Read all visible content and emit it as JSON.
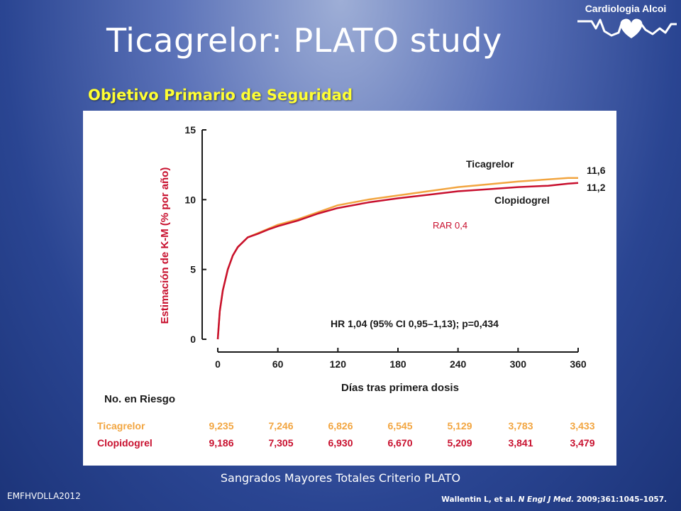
{
  "slide": {
    "title": "Ticagrelor: PLATO study",
    "subtitle": "Objetivo Primario de Seguridad",
    "caption": "Sangrados Mayores Totales Criterio PLATO",
    "footer_left": "EMFHVDLLA2012",
    "reference": {
      "authors": "Wallentin L, et al.",
      "journal": "N Engl J Med.",
      "details": "2009;361:1045–1057."
    },
    "logo": {
      "text": "Cardiologia Alcoi",
      "icon": "heart-icon"
    }
  },
  "chart_data": {
    "type": "line",
    "xlabel": "Días tras primera dosis",
    "ylabel": "Estimación de K-M (% por año)",
    "xlim": [
      0,
      360
    ],
    "ylim": [
      0,
      15
    ],
    "x_ticks": [
      "0",
      "60",
      "120",
      "180",
      "240",
      "300",
      "360"
    ],
    "y_ticks": [
      "0",
      "5",
      "10",
      "15"
    ],
    "series": [
      {
        "name": "Ticagrelor",
        "color": "#f2a540",
        "end_label": "11,6",
        "points": [
          [
            0,
            0
          ],
          [
            2,
            2.0
          ],
          [
            5,
            3.5
          ],
          [
            10,
            5.0
          ],
          [
            15,
            6.0
          ],
          [
            20,
            6.6
          ],
          [
            30,
            7.3
          ],
          [
            40,
            7.6
          ],
          [
            50,
            7.9
          ],
          [
            60,
            8.2
          ],
          [
            80,
            8.6
          ],
          [
            100,
            9.1
          ],
          [
            120,
            9.6
          ],
          [
            150,
            10.0
          ],
          [
            180,
            10.3
          ],
          [
            210,
            10.6
          ],
          [
            240,
            10.9
          ],
          [
            270,
            11.1
          ],
          [
            300,
            11.3
          ],
          [
            330,
            11.45
          ],
          [
            350,
            11.55
          ],
          [
            360,
            11.55
          ]
        ]
      },
      {
        "name": "Clopidogrel",
        "color": "#c8102e",
        "end_label": "11,2",
        "points": [
          [
            0,
            0
          ],
          [
            2,
            2.0
          ],
          [
            5,
            3.5
          ],
          [
            10,
            5.0
          ],
          [
            15,
            6.0
          ],
          [
            20,
            6.6
          ],
          [
            30,
            7.3
          ],
          [
            40,
            7.55
          ],
          [
            50,
            7.85
          ],
          [
            60,
            8.1
          ],
          [
            80,
            8.5
          ],
          [
            100,
            9.0
          ],
          [
            120,
            9.4
          ],
          [
            150,
            9.8
          ],
          [
            180,
            10.1
          ],
          [
            210,
            10.35
          ],
          [
            240,
            10.6
          ],
          [
            270,
            10.75
          ],
          [
            300,
            10.9
          ],
          [
            330,
            11.0
          ],
          [
            350,
            11.15
          ],
          [
            360,
            11.2
          ]
        ]
      }
    ],
    "annotations": {
      "rar": "RAR 0,4",
      "hr": "HR 1,04 (95% CI 0,95–1,13);  p=0,434"
    },
    "risk_table": {
      "header": "No. en Riesgo",
      "rows": [
        {
          "name": "Ticagrelor",
          "color": "#f2a540",
          "values": [
            "9,235",
            "7,246",
            "6,826",
            "6,545",
            "5,129",
            "3,783",
            "3,433"
          ]
        },
        {
          "name": "Clopidogrel",
          "color": "#c8102e",
          "values": [
            "9,186",
            "7,305",
            "6,930",
            "6,670",
            "5,209",
            "3,841",
            "3,479"
          ]
        }
      ]
    }
  }
}
